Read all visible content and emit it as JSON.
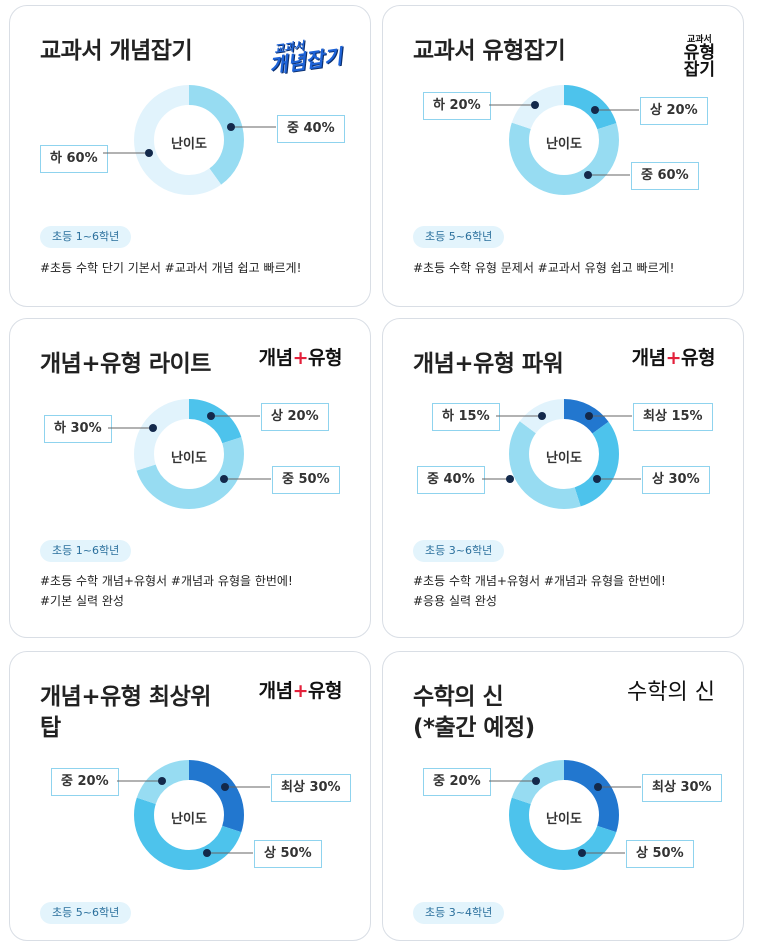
{
  "center_label": "난이도",
  "colors": {
    "ha": "#e1f3fc",
    "jung": "#97dcf2",
    "sang": "#4dc3ec",
    "choisang": "#2277cf",
    "dot": "#13294b",
    "label_border": "#8fd3ee"
  },
  "cards": [
    {
      "title": "교과서 개념잡기",
      "brand": {
        "small": "교과서",
        "main": "개념잡기",
        "icon": "gaenyeom-japgi-logo"
      },
      "difficulty": [
        {
          "label": "중 40%",
          "level": "jung",
          "percent": 40
        },
        {
          "label": "하 60%",
          "level": "ha",
          "percent": 60
        }
      ],
      "grade": "초등 1~6학년",
      "tags": [
        "#초등 수학 단기 기본서  #교과서 개념 쉽고 빠르게!"
      ]
    },
    {
      "title": "교과서 유형잡기",
      "brand": {
        "small": "교과서",
        "main": "유형\n잡기",
        "icon": "yuhyeong-japgi-logo"
      },
      "difficulty": [
        {
          "label": "상 20%",
          "level": "sang",
          "percent": 20
        },
        {
          "label": "중 60%",
          "level": "jung",
          "percent": 60
        },
        {
          "label": "하 20%",
          "level": "ha",
          "percent": 20
        }
      ],
      "grade": "초등 5~6학년",
      "tags": [
        "#초등 수학 유형 문제서  #교과서 유형 쉽고 빠르게!"
      ]
    },
    {
      "title": "개념+유형 라이트",
      "brand": {
        "left": "개념",
        "plus": "+",
        "right": "유형",
        "icon": "gaenyeom-yuhyeong-logo"
      },
      "difficulty": [
        {
          "label": "상 20%",
          "level": "sang",
          "percent": 20
        },
        {
          "label": "중 50%",
          "level": "jung",
          "percent": 50
        },
        {
          "label": "하 30%",
          "level": "ha",
          "percent": 30
        }
      ],
      "grade": "초등 1~6학년",
      "tags": [
        "#초등 수학 개념+유형서  #개념과 유형을 한번에!",
        "#기본 실력 완성"
      ]
    },
    {
      "title": "개념+유형 파워",
      "brand": {
        "left": "개념",
        "plus": "+",
        "right": "유형",
        "icon": "gaenyeom-yuhyeong-logo"
      },
      "difficulty": [
        {
          "label": "최상 15%",
          "level": "choisang",
          "percent": 15
        },
        {
          "label": "상 30%",
          "level": "sang",
          "percent": 30
        },
        {
          "label": "중 40%",
          "level": "jung",
          "percent": 40
        },
        {
          "label": "하 15%",
          "level": "ha",
          "percent": 15
        }
      ],
      "grade": "초등 3~6학년",
      "tags": [
        "#초등 수학 개념+유형서  #개념과 유형을 한번에!",
        "#응용 실력 완성"
      ]
    },
    {
      "title": "개념+유형 최상위\n탑",
      "brand": {
        "left": "개념",
        "plus": "+",
        "right": "유형",
        "icon": "gaenyeom-yuhyeong-logo"
      },
      "difficulty": [
        {
          "label": "최상 30%",
          "level": "choisang",
          "percent": 30
        },
        {
          "label": "상 50%",
          "level": "sang",
          "percent": 50
        },
        {
          "label": "중 20%",
          "level": "jung",
          "percent": 20
        }
      ],
      "grade": "초등 5~6학년",
      "tags": []
    },
    {
      "title": "수학의 신\n(*출간 예정)",
      "brand": {
        "main": "수학의 신",
        "icon": "suhak-ui-sin-logo"
      },
      "difficulty": [
        {
          "label": "최상 30%",
          "level": "choisang",
          "percent": 30
        },
        {
          "label": "상 50%",
          "level": "sang",
          "percent": 50
        },
        {
          "label": "중 20%",
          "level": "jung",
          "percent": 20
        }
      ],
      "grade": "초등 3~4학년",
      "tags": []
    }
  ]
}
